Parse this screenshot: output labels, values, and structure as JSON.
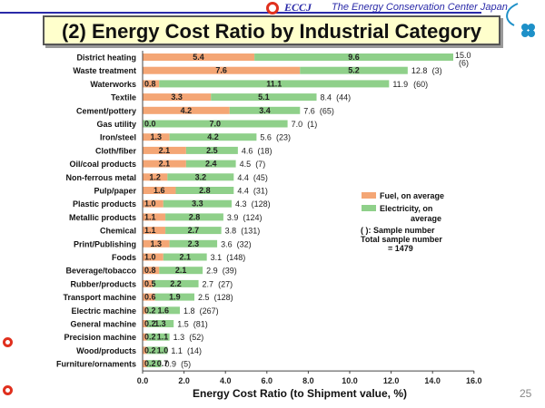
{
  "header": {
    "logo_text": "ECCJ",
    "organization": "The Energy Conservation Center Japan",
    "title": "(2) Energy Cost Ratio by Industrial Category",
    "page_number": "25"
  },
  "colors": {
    "fuel": "#f4a675",
    "electricity": "#8fd08a",
    "title_bg": "#ffffcc",
    "accent": "#2a2aa8"
  },
  "chart_data": {
    "type": "bar",
    "stacked": true,
    "orientation": "horizontal",
    "title": "(2) Energy Cost Ratio by Industrial Category",
    "xlabel": "Energy Cost Ratio (to Shipment value, %)",
    "xlim": [
      0,
      16
    ],
    "xticks": [
      "0.0",
      "2.0",
      "4.0",
      "6.0",
      "8.0",
      "10.0",
      "12.0",
      "14.0",
      "16.0"
    ],
    "legend": {
      "position": "right",
      "fuel_label": "Fuel, on average",
      "elec_label1": "Electricity, on",
      "elec_label2": "average",
      "note1": "( ): Sample number",
      "note2": "Total sample number",
      "note3": "= 1479"
    },
    "rows": [
      {
        "name": "District heating",
        "fuel": 5.4,
        "elec": 9.6,
        "fuel_label": "5.4",
        "elec_label": "9.6",
        "total_label": "15.0",
        "count_label": "(6)"
      },
      {
        "name": "Waste treatment",
        "fuel": 7.6,
        "elec": 5.2,
        "fuel_label": "7.6",
        "elec_label": "5.2",
        "total_label": "12.8",
        "count_label": "(3)"
      },
      {
        "name": "Waterworks",
        "fuel": 0.8,
        "elec": 11.1,
        "fuel_label": "0.8",
        "elec_label": "11.1",
        "total_label": "11.9",
        "count_label": "(60)"
      },
      {
        "name": "Textile",
        "fuel": 3.3,
        "elec": 5.1,
        "fuel_label": "3.3",
        "elec_label": "5.1",
        "total_label": "8.4",
        "count_label": "(44)"
      },
      {
        "name": "Cement/pottery",
        "fuel": 4.2,
        "elec": 3.4,
        "fuel_label": "4.2",
        "elec_label": "3.4",
        "total_label": "7.6",
        "count_label": "(65)"
      },
      {
        "name": "Gas utility",
        "fuel": 0.0,
        "elec": 7.0,
        "fuel_label": "0.0",
        "elec_label": "7.0",
        "total_label": "7.0",
        "count_label": "(1)"
      },
      {
        "name": "Iron/steel",
        "fuel": 1.3,
        "elec": 4.2,
        "fuel_label": "1.3",
        "elec_label": "4.2",
        "total_label": "5.6",
        "count_label": "(23)"
      },
      {
        "name": "Cloth/fiber",
        "fuel": 2.1,
        "elec": 2.5,
        "fuel_label": "2.1",
        "elec_label": "2.5",
        "total_label": "4.6",
        "count_label": "(18)"
      },
      {
        "name": "Oil/coal products",
        "fuel": 2.1,
        "elec": 2.4,
        "fuel_label": "2.1",
        "elec_label": "2.4",
        "total_label": "4.5",
        "count_label": "(7)"
      },
      {
        "name": "Non-ferrous metal",
        "fuel": 1.2,
        "elec": 3.2,
        "fuel_label": "1.2",
        "elec_label": "3.2",
        "total_label": "4.4",
        "count_label": "(45)"
      },
      {
        "name": "Pulp/paper",
        "fuel": 1.6,
        "elec": 2.8,
        "fuel_label": "1.6",
        "elec_label": "2.8",
        "total_label": "4.4",
        "count_label": "(31)"
      },
      {
        "name": "Plastic products",
        "fuel": 1.0,
        "elec": 3.3,
        "fuel_label": "1.0",
        "elec_label": "3.3",
        "total_label": "4.3",
        "count_label": "(128)"
      },
      {
        "name": "Metallic products",
        "fuel": 1.1,
        "elec": 2.8,
        "fuel_label": "1.1",
        "elec_label": "2.8",
        "total_label": "3.9",
        "count_label": "(124)"
      },
      {
        "name": "Chemical",
        "fuel": 1.1,
        "elec": 2.7,
        "fuel_label": "1.1",
        "elec_label": "2.7",
        "total_label": "3.8",
        "count_label": "(131)"
      },
      {
        "name": "Print/Publishing",
        "fuel": 1.3,
        "elec": 2.3,
        "fuel_label": "1.3",
        "elec_label": "2.3",
        "total_label": "3.6",
        "count_label": "(32)"
      },
      {
        "name": "Foods",
        "fuel": 1.0,
        "elec": 2.1,
        "fuel_label": "1.0",
        "elec_label": "2.1",
        "total_label": "3.1",
        "count_label": "(148)"
      },
      {
        "name": "Beverage/tobacco",
        "fuel": 0.8,
        "elec": 2.1,
        "fuel_label": "0.8",
        "elec_label": "2.1",
        "total_label": "2.9",
        "count_label": "(39)"
      },
      {
        "name": "Rubber/products",
        "fuel": 0.5,
        "elec": 2.2,
        "fuel_label": "0.5",
        "elec_label": "2.2",
        "total_label": "2.7",
        "count_label": "(27)"
      },
      {
        "name": "Transport machine",
        "fuel": 0.6,
        "elec": 1.9,
        "fuel_label": "0.6",
        "elec_label": "1.9",
        "total_label": "2.5",
        "count_label": "(128)"
      },
      {
        "name": "Electric machine",
        "fuel": 0.2,
        "elec": 1.6,
        "fuel_label": "0.2",
        "elec_label": "1.6",
        "total_label": "1.8",
        "count_label": "(267)"
      },
      {
        "name": "General machine",
        "fuel": 0.2,
        "elec": 1.3,
        "fuel_label": "0.2",
        "elec_label": "1.3",
        "total_label": "1.5",
        "count_label": "(81)"
      },
      {
        "name": "Precision machine",
        "fuel": 0.2,
        "elec": 1.1,
        "fuel_label": "0.2",
        "elec_label": "1.1",
        "total_label": "1.3",
        "count_label": "(52)"
      },
      {
        "name": "Wood/products",
        "fuel": 0.2,
        "elec": 1.0,
        "fuel_label": "0.2",
        "elec_label": "1.0",
        "total_label": "1.1",
        "count_label": "(14)"
      },
      {
        "name": "Furniture/ornaments",
        "fuel": 0.2,
        "elec": 0.7,
        "fuel_label": "0.2",
        "elec_label": "0.7",
        "total_label": "0.9",
        "count_label": "(5)"
      }
    ]
  }
}
